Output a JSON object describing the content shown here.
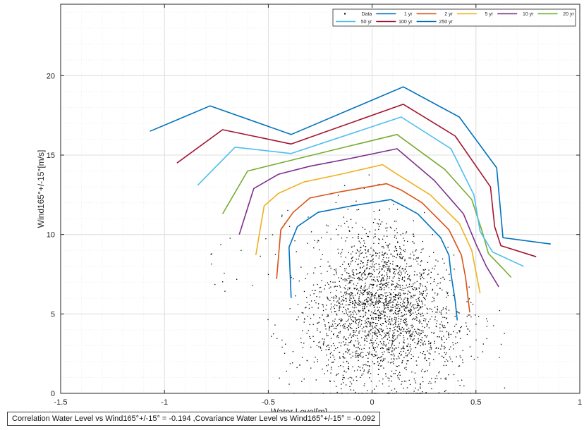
{
  "chart_data": {
    "type": "line",
    "xlabel": "Water Level[m]",
    "ylabel": "Wind165°+/-15°[m/s]",
    "xlim": [
      -1.5,
      1
    ],
    "ylim": [
      0,
      24.5
    ],
    "x_ticks": [
      "-1.5",
      "-1",
      "-0.5",
      "0",
      "0.5",
      "1"
    ],
    "y_ticks": [
      "0",
      "5",
      "10",
      "15",
      "20"
    ],
    "x_tick_values": [
      -1.5,
      -1,
      -0.5,
      0,
      0.5,
      1
    ],
    "y_tick_values": [
      0,
      5,
      10,
      15,
      20
    ],
    "grid": true,
    "minor_grid": true,
    "legend_position": "top-right",
    "scatter": {
      "name": "Data",
      "color": "#000000",
      "description": "dense cloud, centered near water level 0 to 0.2 m, wind 0 to 14 m/s"
    },
    "series": [
      {
        "name": "1 yr",
        "color": "#0072BD",
        "x": [
          -0.39,
          -0.4,
          -0.36,
          -0.26,
          -0.1,
          0.09,
          0.15,
          0.22,
          0.33,
          0.37,
          0.38,
          0.4,
          0.41
        ],
        "y": [
          6.0,
          9.2,
          10.5,
          11.4,
          11.8,
          12.2,
          11.8,
          11.3,
          9.8,
          8.7,
          7.5,
          5.8,
          4.6
        ]
      },
      {
        "name": "2 yr",
        "color": "#D95319",
        "x": [
          -0.46,
          -0.44,
          -0.38,
          -0.3,
          -0.15,
          0.07,
          0.14,
          0.24,
          0.37,
          0.43,
          0.45,
          0.47
        ],
        "y": [
          7.2,
          10.3,
          11.4,
          12.3,
          12.7,
          13.2,
          12.8,
          12.0,
          10.3,
          8.7,
          7.3,
          5.1
        ]
      },
      {
        "name": "5 yr",
        "color": "#EDB120",
        "x": [
          -0.56,
          -0.52,
          -0.45,
          -0.33,
          -0.15,
          0.05,
          0.12,
          0.28,
          0.42,
          0.48,
          0.52
        ],
        "y": [
          8.7,
          11.8,
          12.6,
          13.3,
          13.8,
          14.4,
          13.8,
          12.5,
          10.7,
          9.0,
          6.3
        ]
      },
      {
        "name": "10 yr",
        "color": "#7E2F8E",
        "x": [
          -0.64,
          -0.57,
          -0.45,
          -0.3,
          -0.1,
          0.12,
          0.3,
          0.44,
          0.5,
          0.55,
          0.61
        ],
        "y": [
          10.0,
          12.9,
          13.8,
          14.3,
          14.8,
          15.4,
          13.4,
          11.3,
          9.4,
          8.0,
          6.7
        ]
      },
      {
        "name": "20 yr",
        "color": "#77AC30",
        "x": [
          -0.72,
          -0.6,
          -0.35,
          -0.1,
          0.12,
          0.35,
          0.48,
          0.53,
          0.56,
          0.62,
          0.67
        ],
        "y": [
          11.3,
          14.0,
          14.8,
          15.6,
          16.3,
          14.1,
          12.2,
          10.2,
          8.8,
          8.0,
          7.3
        ]
      },
      {
        "name": "50 yr",
        "color": "#4DBEEE",
        "x": [
          -0.84,
          -0.66,
          -0.39,
          0.14,
          0.38,
          0.49,
          0.52,
          0.58,
          0.73
        ],
        "y": [
          13.1,
          15.5,
          15.1,
          17.4,
          15.4,
          12.5,
          10.2,
          8.9,
          8.0
        ]
      },
      {
        "name": "100 yr",
        "color": "#A2142F",
        "x": [
          -0.94,
          -0.72,
          -0.39,
          0.15,
          0.4,
          0.57,
          0.59,
          0.62,
          0.79
        ],
        "y": [
          14.5,
          16.6,
          15.7,
          18.2,
          16.2,
          13.0,
          10.5,
          9.3,
          8.6
        ]
      },
      {
        "name": "250 yr",
        "color": "#0072BD",
        "x": [
          -1.07,
          -0.78,
          -0.39,
          0.15,
          0.42,
          0.6,
          0.63,
          0.86
        ],
        "y": [
          16.5,
          18.1,
          16.3,
          19.3,
          17.4,
          14.2,
          9.8,
          9.4
        ]
      }
    ]
  },
  "legend": {
    "entries": [
      "Data",
      "1 yr",
      "2 yr",
      "5 yr",
      "10 yr",
      "20 yr",
      "50 yr",
      "100 yr",
      "250 yr"
    ]
  },
  "annotation": {
    "text": "Correlation Water Level vs Wind165°+/-15° = -0.194 ,Covariance Water Level vs Wind165°+/-15° = -0.092"
  }
}
